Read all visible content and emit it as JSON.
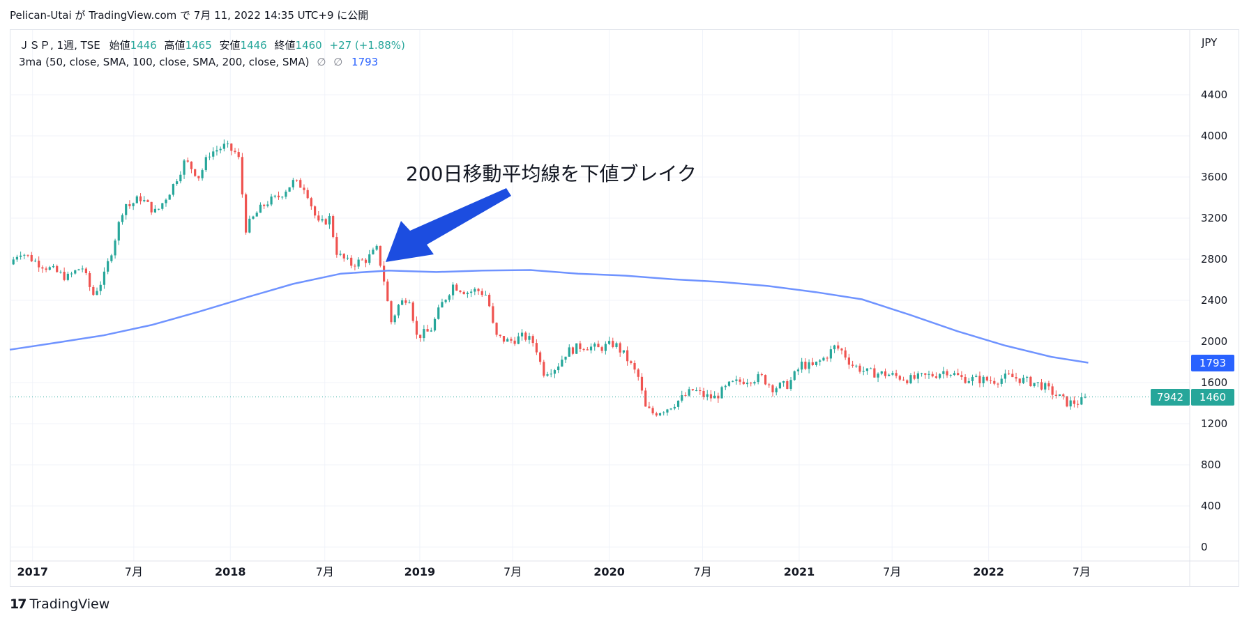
{
  "header": {
    "publish_line": "Pelican-Utai が TradingView.com で 7月 11, 2022 14:35 UTC+9 に公開"
  },
  "legend": {
    "symbol": "ＪＳＰ, 1週, TSE",
    "open_label": "始値",
    "open_value": "1446",
    "high_label": "高値",
    "high_value": "1465",
    "low_label": "安値",
    "low_value": "1446",
    "close_label": "終値",
    "close_value": "1460",
    "change": "+27 (+1.88%)",
    "indicator": "3ma (50, close, SMA, 100, close, SMA, 200, close, SMA)",
    "indicator_hidden_1": "∅",
    "indicator_hidden_2": "∅",
    "indicator_value": "1793"
  },
  "axis": {
    "currency": "JPY",
    "price_ticks": [
      "4400",
      "4000",
      "3600",
      "3200",
      "2800",
      "2400",
      "2000",
      "1600",
      "1200",
      "800",
      "400",
      "0"
    ],
    "time_ticks": [
      {
        "label": "2017",
        "bold": true
      },
      {
        "label": "7月",
        "bold": false
      },
      {
        "label": "2018",
        "bold": true
      },
      {
        "label": "7月",
        "bold": false
      },
      {
        "label": "2019",
        "bold": true
      },
      {
        "label": "7月",
        "bold": false
      },
      {
        "label": "2020",
        "bold": true
      },
      {
        "label": "7月",
        "bold": false
      },
      {
        "label": "2021",
        "bold": true
      },
      {
        "label": "7月",
        "bold": false
      },
      {
        "label": "2022",
        "bold": true
      },
      {
        "label": "7月",
        "bold": false
      }
    ]
  },
  "tags": {
    "ma_value": "1793",
    "countdown": "7942",
    "last_price": "1460"
  },
  "annotation": {
    "text": "200日移動平均線を下値ブレイク"
  },
  "footer": {
    "brand": "TradingView",
    "logo_mark": "17"
  },
  "colors": {
    "up": "#26a69a",
    "down": "#ef5350",
    "ma_line": "#6f93ff",
    "arrow": "#1c4de0",
    "ma_tag": "#2962ff",
    "price_tag": "#26a69a",
    "grid": "#f0f3fa"
  },
  "chart_data": {
    "type": "candlestick",
    "title": "",
    "xlabel": "",
    "ylabel": "",
    "ylim": [
      0,
      4600
    ],
    "xlim": [
      "2016-11-01",
      "2022-11-15"
    ],
    "grid": true,
    "price_anchors": [
      [
        "2016-11-01",
        2750
      ],
      [
        "2016-11-20",
        2880
      ],
      [
        "2016-12-20",
        2780
      ],
      [
        "2017-01-20",
        2700
      ],
      [
        "2017-02-20",
        2620
      ],
      [
        "2017-03-20",
        2730
      ],
      [
        "2017-04-10",
        2450
      ],
      [
        "2017-05-01",
        2620
      ],
      [
        "2017-05-20",
        2950
      ],
      [
        "2017-06-10",
        3350
      ],
      [
        "2017-06-20",
        3320
      ],
      [
        "2017-07-10",
        3400
      ],
      [
        "2017-08-10",
        3250
      ],
      [
        "2017-09-10",
        3500
      ],
      [
        "2017-10-05",
        3760
      ],
      [
        "2017-11-01",
        3600
      ],
      [
        "2017-11-20",
        3830
      ],
      [
        "2017-12-20",
        3900
      ],
      [
        "2018-01-15",
        3820
      ],
      [
        "2018-01-30",
        3100
      ],
      [
        "2018-02-20",
        3250
      ],
      [
        "2018-03-10",
        3350
      ],
      [
        "2018-04-01",
        3400
      ],
      [
        "2018-05-01",
        3550
      ],
      [
        "2018-05-25",
        3500
      ],
      [
        "2018-06-10",
        3250
      ],
      [
        "2018-06-20",
        3130
      ],
      [
        "2018-07-10",
        3200
      ],
      [
        "2018-07-25",
        2850
      ],
      [
        "2018-08-20",
        2750
      ],
      [
        "2018-09-20",
        2800
      ],
      [
        "2018-10-10",
        2900
      ],
      [
        "2018-10-25",
        2550
      ],
      [
        "2018-11-05",
        2180
      ],
      [
        "2018-11-20",
        2350
      ],
      [
        "2018-12-10",
        2450
      ],
      [
        "2018-12-25",
        2050
      ],
      [
        "2019-01-20",
        2100
      ],
      [
        "2019-02-10",
        2350
      ],
      [
        "2019-03-05",
        2550
      ],
      [
        "2019-04-01",
        2480
      ],
      [
        "2019-04-20",
        2500
      ],
      [
        "2019-05-10",
        2450
      ],
      [
        "2019-05-25",
        2050
      ],
      [
        "2019-06-20",
        2000
      ],
      [
        "2019-07-20",
        2050
      ],
      [
        "2019-08-10",
        1980
      ],
      [
        "2019-08-25",
        1700
      ],
      [
        "2019-09-20",
        1750
      ],
      [
        "2019-10-10",
        1900
      ],
      [
        "2019-11-10",
        1960
      ],
      [
        "2019-12-10",
        1930
      ],
      [
        "2020-01-10",
        1980
      ],
      [
        "2020-02-01",
        1850
      ],
      [
        "2020-02-25",
        1650
      ],
      [
        "2020-03-10",
        1350
      ],
      [
        "2020-03-25",
        1300
      ],
      [
        "2020-04-20",
        1350
      ],
      [
        "2020-05-20",
        1450
      ],
      [
        "2020-06-10",
        1530
      ],
      [
        "2020-07-01",
        1470
      ],
      [
        "2020-07-20",
        1450
      ],
      [
        "2020-08-20",
        1580
      ],
      [
        "2020-09-20",
        1630
      ],
      [
        "2020-10-20",
        1650
      ],
      [
        "2020-11-10",
        1550
      ],
      [
        "2020-12-10",
        1580
      ],
      [
        "2021-01-05",
        1780
      ],
      [
        "2021-01-25",
        1750
      ],
      [
        "2021-02-20",
        1850
      ],
      [
        "2021-03-10",
        1950
      ],
      [
        "2021-03-25",
        1900
      ],
      [
        "2021-04-10",
        1780
      ],
      [
        "2021-05-10",
        1700
      ],
      [
        "2021-06-20",
        1680
      ],
      [
        "2021-08-01",
        1630
      ],
      [
        "2021-09-20",
        1680
      ],
      [
        "2021-10-10",
        1720
      ],
      [
        "2021-11-10",
        1640
      ],
      [
        "2022-01-10",
        1620
      ],
      [
        "2022-02-10",
        1660
      ],
      [
        "2022-03-10",
        1620
      ],
      [
        "2022-04-10",
        1580
      ],
      [
        "2022-05-01",
        1510
      ],
      [
        "2022-06-01",
        1400
      ],
      [
        "2022-06-25",
        1410
      ],
      [
        "2022-07-11",
        1460
      ]
    ],
    "ma_name": "200 SMA",
    "ma_points": [
      [
        "2016-11-01",
        1920
      ],
      [
        "2017-02-01",
        1990
      ],
      [
        "2017-05-01",
        2060
      ],
      [
        "2017-08-01",
        2160
      ],
      [
        "2017-11-01",
        2290
      ],
      [
        "2018-02-01",
        2430
      ],
      [
        "2018-05-01",
        2560
      ],
      [
        "2018-08-01",
        2660
      ],
      [
        "2018-11-01",
        2690
      ],
      [
        "2019-02-01",
        2675
      ],
      [
        "2019-05-01",
        2690
      ],
      [
        "2019-08-01",
        2695
      ],
      [
        "2019-11-01",
        2660
      ],
      [
        "2020-02-01",
        2640
      ],
      [
        "2020-05-01",
        2605
      ],
      [
        "2020-08-01",
        2580
      ],
      [
        "2020-11-01",
        2540
      ],
      [
        "2021-02-01",
        2480
      ],
      [
        "2021-05-01",
        2410
      ],
      [
        "2021-08-01",
        2260
      ],
      [
        "2021-11-01",
        2100
      ],
      [
        "2022-02-01",
        1960
      ],
      [
        "2022-05-01",
        1850
      ],
      [
        "2022-07-11",
        1793
      ]
    ],
    "last_price": 1460,
    "ma_last": 1793
  }
}
